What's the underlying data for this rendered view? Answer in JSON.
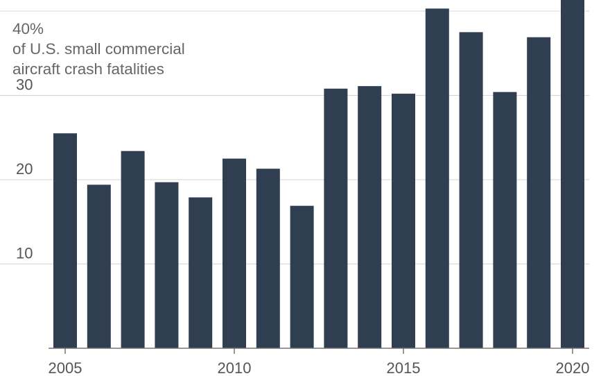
{
  "chart_data": {
    "type": "bar",
    "categories": [
      "2005",
      "2006",
      "2007",
      "2008",
      "2009",
      "2010",
      "2011",
      "2012",
      "2013",
      "2014",
      "2015",
      "2016",
      "2017",
      "2018",
      "2019",
      "2020"
    ],
    "values": [
      25.5,
      19.4,
      23.4,
      19.7,
      17.9,
      22.5,
      21.3,
      16.9,
      30.8,
      31.1,
      30.2,
      40.3,
      37.5,
      30.4,
      36.9,
      41.5
    ],
    "ylim": [
      0,
      41.5
    ],
    "yticks": [
      10,
      20,
      30
    ],
    "ytick_labels": [
      "10",
      "20",
      "30"
    ],
    "xtick_labels": [
      "2005",
      "2010",
      "2015",
      "2020"
    ],
    "top_tick_label": "40%",
    "ylabel_lines": [
      "of U.S. small commercial",
      "aircraft crash fatalities"
    ],
    "grid": true,
    "bar_color": "#2f3e50",
    "grid_color": "#d4d4d4",
    "axis_color": "#777777"
  }
}
